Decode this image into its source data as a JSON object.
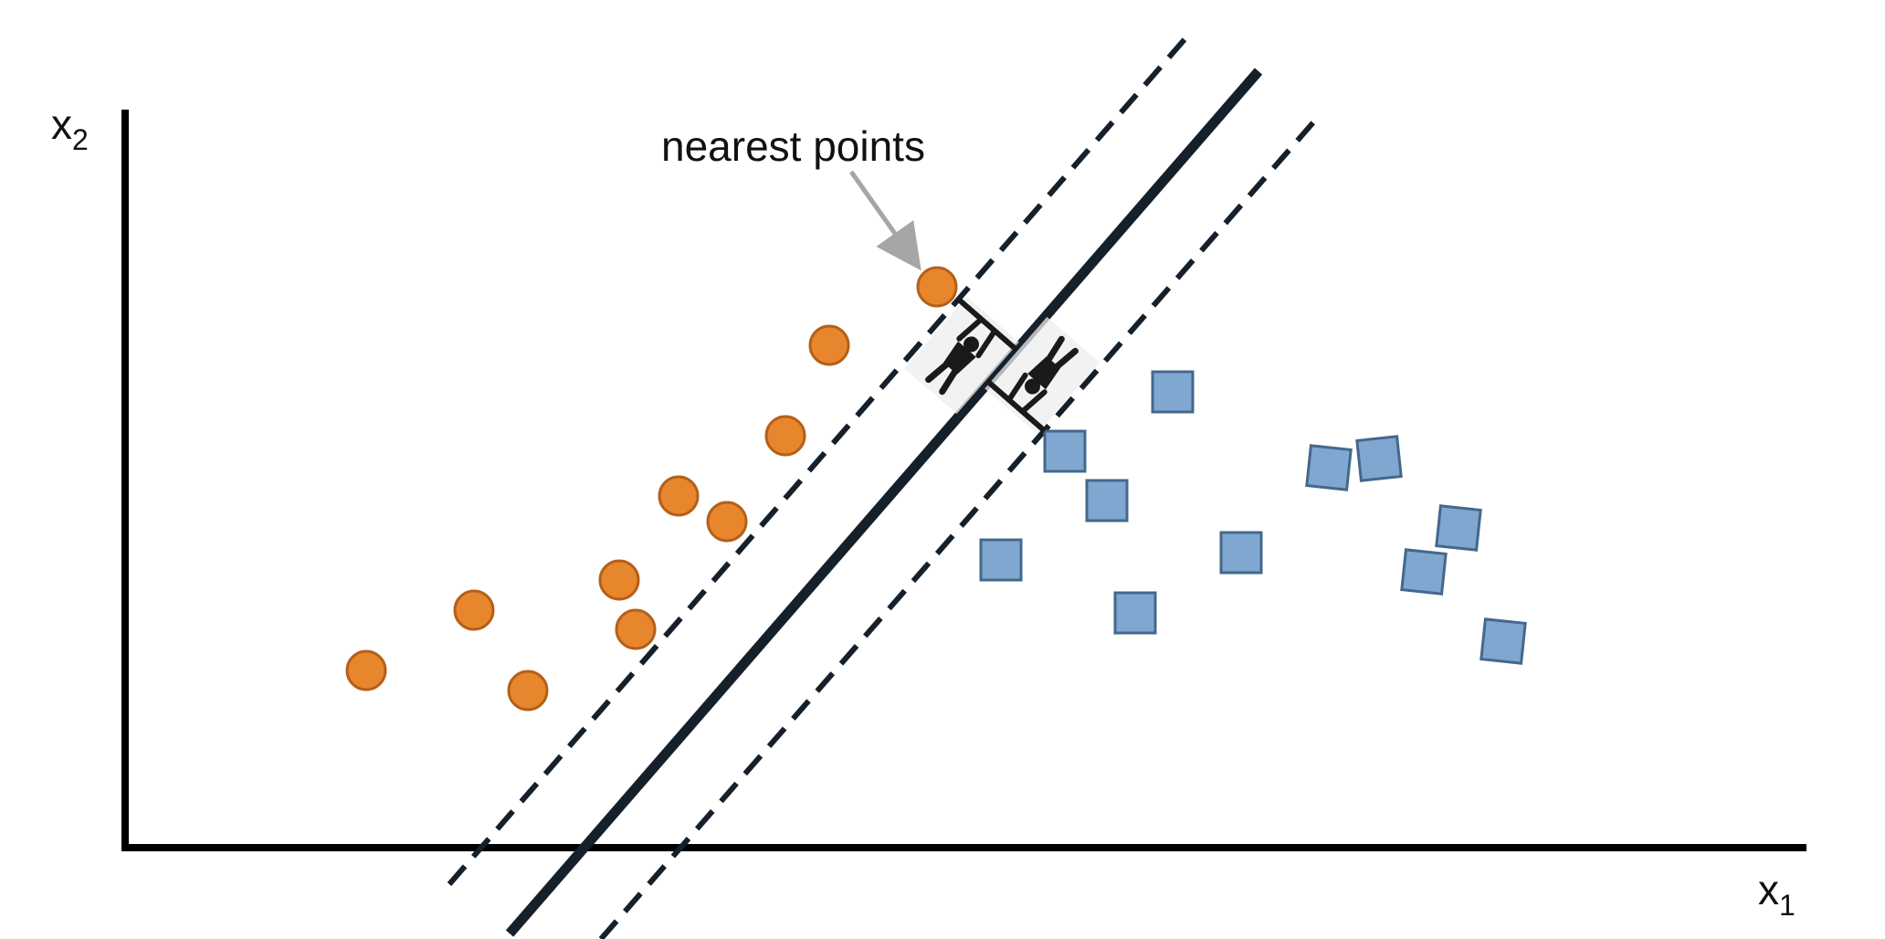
{
  "axes": {
    "x_label": "x",
    "x_subscript": "1",
    "y_label": "x",
    "y_subscript": "2"
  },
  "annotation": {
    "text": "nearest points"
  },
  "colors": {
    "class_a_fill": "#E8862E",
    "class_a_stroke": "#B4601A",
    "class_b_fill": "#7FA7CF",
    "class_b_stroke": "#44688C",
    "axis": "#000000",
    "boundary": "#15202B",
    "arrow": "#A6A6A6"
  },
  "icons": {
    "margin_figures": "hanging-person-icon"
  }
}
